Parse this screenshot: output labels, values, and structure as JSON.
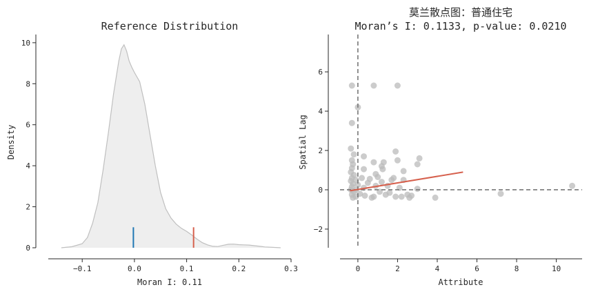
{
  "chart_data": [
    {
      "type": "area",
      "title": "Reference Distribution",
      "xlabel": "Moran I: 0.11",
      "ylabel": "Density",
      "xlim": [
        -0.165,
        0.3
      ],
      "ylim": [
        0,
        10.4
      ],
      "xticks": [
        -0.1,
        0.0,
        0.1,
        0.2,
        0.3
      ],
      "xtick_labels": [
        "−0.1",
        "0.0",
        "0.1",
        "0.2",
        "0.3"
      ],
      "yticks": [
        0,
        2,
        4,
        6,
        8,
        10
      ],
      "ytick_labels": [
        "0",
        "2",
        "4",
        "6",
        "8",
        "10"
      ],
      "grid": false,
      "fill_color": "#eeeeee",
      "line_color": "#bfbfbf",
      "kde": [
        {
          "x": -0.14,
          "y": 0.0
        },
        {
          "x": -0.12,
          "y": 0.05
        },
        {
          "x": -0.1,
          "y": 0.2
        },
        {
          "x": -0.09,
          "y": 0.5
        },
        {
          "x": -0.08,
          "y": 1.2
        },
        {
          "x": -0.07,
          "y": 2.2
        },
        {
          "x": -0.06,
          "y": 3.8
        },
        {
          "x": -0.05,
          "y": 5.6
        },
        {
          "x": -0.04,
          "y": 7.5
        },
        {
          "x": -0.03,
          "y": 9.1
        },
        {
          "x": -0.025,
          "y": 9.7
        },
        {
          "x": -0.02,
          "y": 9.9
        },
        {
          "x": -0.015,
          "y": 9.6
        },
        {
          "x": -0.01,
          "y": 9.1
        },
        {
          "x": -0.005,
          "y": 8.8
        },
        {
          "x": 0.0,
          "y": 8.55
        },
        {
          "x": 0.01,
          "y": 8.1
        },
        {
          "x": 0.02,
          "y": 7.0
        },
        {
          "x": 0.03,
          "y": 5.5
        },
        {
          "x": 0.04,
          "y": 4.0
        },
        {
          "x": 0.05,
          "y": 2.7
        },
        {
          "x": 0.06,
          "y": 1.9
        },
        {
          "x": 0.07,
          "y": 1.45
        },
        {
          "x": 0.08,
          "y": 1.15
        },
        {
          "x": 0.09,
          "y": 0.95
        },
        {
          "x": 0.1,
          "y": 0.8
        },
        {
          "x": 0.11,
          "y": 0.62
        },
        {
          "x": 0.12,
          "y": 0.42
        },
        {
          "x": 0.13,
          "y": 0.25
        },
        {
          "x": 0.14,
          "y": 0.14
        },
        {
          "x": 0.15,
          "y": 0.07
        },
        {
          "x": 0.16,
          "y": 0.06
        },
        {
          "x": 0.17,
          "y": 0.12
        },
        {
          "x": 0.18,
          "y": 0.17
        },
        {
          "x": 0.19,
          "y": 0.18
        },
        {
          "x": 0.2,
          "y": 0.15
        },
        {
          "x": 0.21,
          "y": 0.14
        },
        {
          "x": 0.22,
          "y": 0.13
        },
        {
          "x": 0.23,
          "y": 0.1
        },
        {
          "x": 0.24,
          "y": 0.07
        },
        {
          "x": 0.25,
          "y": 0.04
        },
        {
          "x": 0.265,
          "y": 0.02
        },
        {
          "x": 0.28,
          "y": 0.0
        }
      ],
      "markers": [
        {
          "x": -0.002,
          "height": 1.0,
          "color": "#1f77b4"
        },
        {
          "x": 0.1133,
          "height": 1.0,
          "color": "#d6604d"
        }
      ]
    },
    {
      "type": "scatter",
      "title": "莫兰散点图：普通住宅",
      "subtitle": "Moran’s I: 0.1133, p-value: 0.0210",
      "xlabel": "Attribute",
      "ylabel": "Spatial Lag",
      "xlim": [
        -0.9,
        11.3
      ],
      "ylim": [
        -2.95,
        7.9
      ],
      "xticks": [
        0,
        2,
        4,
        6,
        8,
        10
      ],
      "xtick_labels": [
        "0",
        "2",
        "4",
        "6",
        "8",
        "10"
      ],
      "yticks": [
        -2,
        0,
        2,
        4,
        6
      ],
      "ytick_labels": [
        "−2",
        "0",
        "2",
        "4",
        "6"
      ],
      "grid": false,
      "point_color": "#bbbbbb",
      "reference_lines": {
        "x": 0,
        "y": 0,
        "color": "#777777"
      },
      "fit_line": {
        "x": [
          -0.4,
          5.3
        ],
        "y": [
          -0.05,
          0.9
        ],
        "color": "#d6604d"
      },
      "points": [
        {
          "x": -0.3,
          "y": 5.3
        },
        {
          "x": 0.8,
          "y": 5.3
        },
        {
          "x": 2.0,
          "y": 5.3
        },
        {
          "x": 0.0,
          "y": 4.2
        },
        {
          "x": -0.3,
          "y": 3.4
        },
        {
          "x": -0.35,
          "y": 2.1
        },
        {
          "x": -0.2,
          "y": 1.8
        },
        {
          "x": 0.3,
          "y": 1.7
        },
        {
          "x": 1.9,
          "y": 1.95
        },
        {
          "x": 3.1,
          "y": 1.6
        },
        {
          "x": 2.0,
          "y": 1.5
        },
        {
          "x": 3.0,
          "y": 1.3
        },
        {
          "x": 1.3,
          "y": 1.4
        },
        {
          "x": 1.2,
          "y": 1.2
        },
        {
          "x": 0.8,
          "y": 1.4
        },
        {
          "x": 1.25,
          "y": 1.05
        },
        {
          "x": 2.3,
          "y": 0.95
        },
        {
          "x": 0.3,
          "y": 1.05
        },
        {
          "x": -0.3,
          "y": 1.5
        },
        {
          "x": -0.25,
          "y": 1.3
        },
        {
          "x": -0.3,
          "y": 1.1
        },
        {
          "x": -0.35,
          "y": 0.9
        },
        {
          "x": -0.2,
          "y": 0.75
        },
        {
          "x": -0.3,
          "y": 0.6
        },
        {
          "x": -0.35,
          "y": 0.45
        },
        {
          "x": -0.25,
          "y": 0.3
        },
        {
          "x": -0.3,
          "y": 0.15
        },
        {
          "x": -0.35,
          "y": 0.0
        },
        {
          "x": -0.2,
          "y": -0.1
        },
        {
          "x": -0.3,
          "y": -0.25
        },
        {
          "x": -0.25,
          "y": -0.4
        },
        {
          "x": -0.1,
          "y": 0.5
        },
        {
          "x": -0.1,
          "y": 0.0
        },
        {
          "x": -0.1,
          "y": -0.35
        },
        {
          "x": 0.0,
          "y": 0.25
        },
        {
          "x": 0.1,
          "y": -0.2
        },
        {
          "x": 0.2,
          "y": 0.6
        },
        {
          "x": 0.3,
          "y": 0.1
        },
        {
          "x": 0.35,
          "y": -0.3
        },
        {
          "x": 0.5,
          "y": 0.35
        },
        {
          "x": 0.6,
          "y": 0.55
        },
        {
          "x": 0.7,
          "y": -0.4
        },
        {
          "x": 0.8,
          "y": -0.35
        },
        {
          "x": 0.9,
          "y": 0.2
        },
        {
          "x": 0.9,
          "y": 0.8
        },
        {
          "x": 1.0,
          "y": 0.65
        },
        {
          "x": 1.1,
          "y": -0.1
        },
        {
          "x": 1.2,
          "y": 0.4
        },
        {
          "x": 1.4,
          "y": -0.25
        },
        {
          "x": 1.5,
          "y": 0.2
        },
        {
          "x": 1.7,
          "y": 0.5
        },
        {
          "x": 1.8,
          "y": 0.6
        },
        {
          "x": 1.6,
          "y": -0.15
        },
        {
          "x": 1.9,
          "y": -0.35
        },
        {
          "x": 2.1,
          "y": 0.1
        },
        {
          "x": 2.2,
          "y": -0.35
        },
        {
          "x": 2.3,
          "y": 0.5
        },
        {
          "x": 2.5,
          "y": -0.25
        },
        {
          "x": 2.6,
          "y": -0.4
        },
        {
          "x": 2.7,
          "y": -0.3
        },
        {
          "x": 3.0,
          "y": 0.05
        },
        {
          "x": 3.9,
          "y": -0.4
        },
        {
          "x": 7.2,
          "y": -0.2
        },
        {
          "x": 10.8,
          "y": 0.2
        }
      ]
    }
  ]
}
